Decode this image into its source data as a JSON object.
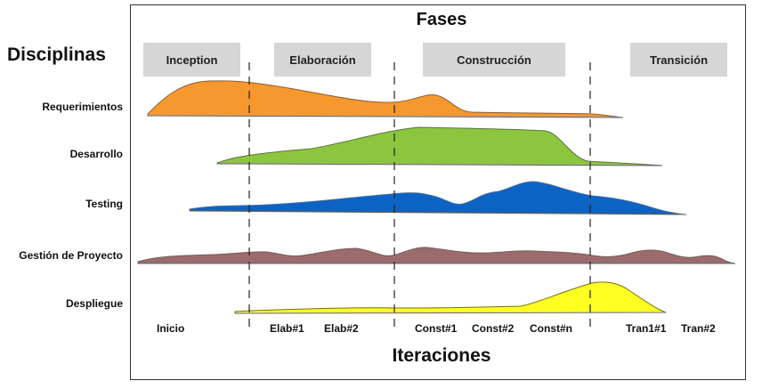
{
  "header": {
    "phases_title": "Fases",
    "disciplines_title": "Disciplinas",
    "iterations_title": "Iteraciones"
  },
  "phases": [
    "Inception",
    "Elaboración",
    "Construcción",
    "Transición"
  ],
  "disciplines": [
    "Requerimientos",
    "Desarrollo",
    "Testing",
    "Gestión de Proyecto",
    "Despliegue"
  ],
  "iterations": [
    "Inicio",
    "Elab#1",
    "Elab#2",
    "Const#1",
    "Const#2",
    "Const#n",
    "Tran1#1",
    "Tran#2"
  ],
  "colors": {
    "requerimientos": "#f7982f",
    "desarrollo": "#8cc63f",
    "testing": "#0c63c6",
    "gestion": "#9c6b6b",
    "despliegue": "#ffff22",
    "phase_box": "#d6d6d6"
  }
}
